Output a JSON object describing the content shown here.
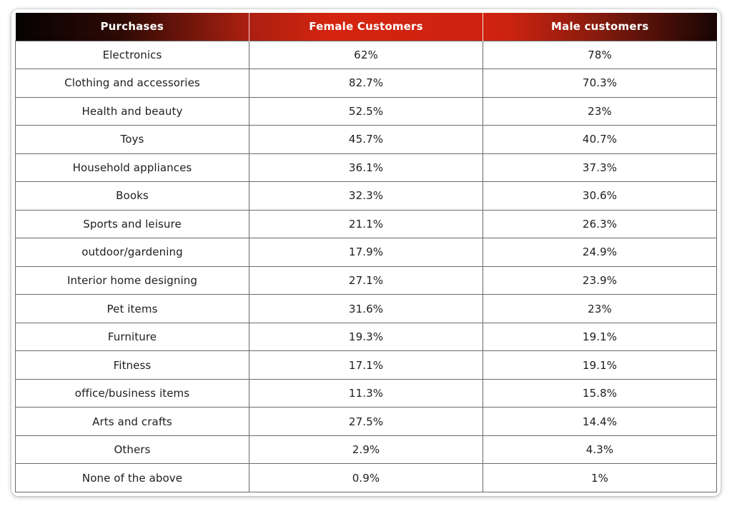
{
  "table": {
    "columns": [
      "Purchases",
      "Female Customers",
      "Male customers"
    ],
    "rows": [
      {
        "purchase": "Electronics",
        "female": "62%",
        "male": "78%"
      },
      {
        "purchase": "Clothing and accessories",
        "female": "82.7%",
        "male": "70.3%"
      },
      {
        "purchase": "Health and beauty",
        "female": "52.5%",
        "male": "23%"
      },
      {
        "purchase": "Toys",
        "female": "45.7%",
        "male": "40.7%"
      },
      {
        "purchase": "Household appliances",
        "female": "36.1%",
        "male": "37.3%"
      },
      {
        "purchase": "Books",
        "female": "32.3%",
        "male": "30.6%"
      },
      {
        "purchase": "Sports and leisure",
        "female": "21.1%",
        "male": "26.3%"
      },
      {
        "purchase": "outdoor/gardening",
        "female": "17.9%",
        "male": "24.9%"
      },
      {
        "purchase": "Interior home designing",
        "female": "27.1%",
        "male": "23.9%"
      },
      {
        "purchase": "Pet items",
        "female": "31.6%",
        "male": "23%"
      },
      {
        "purchase": "Furniture",
        "female": "19.3%",
        "male": "19.1%"
      },
      {
        "purchase": "Fitness",
        "female": "17.1%",
        "male": "19.1%"
      },
      {
        "purchase": "office/business items",
        "female": "11.3%",
        "male": "15.8%"
      },
      {
        "purchase": "Arts and crafts",
        "female": "27.5%",
        "male": "14.4%"
      },
      {
        "purchase": "Others",
        "female": "2.9%",
        "male": "4.3%"
      },
      {
        "purchase": "None of the above",
        "female": "0.9%",
        "male": "1%"
      }
    ]
  },
  "colors": {
    "header_gradient_start": "#060202",
    "header_gradient_mid": "#d4240f",
    "header_gradient_end": "#170503",
    "header_text": "#ffffff",
    "body_text": "#1d1d1d",
    "grid_line": "#6a6a6a",
    "card_background": "#ffffff"
  },
  "chart_data": {
    "type": "table",
    "title": "",
    "columns": [
      "Purchases",
      "Female Customers",
      "Male customers"
    ],
    "categories": [
      "Electronics",
      "Clothing and accessories",
      "Health and beauty",
      "Toys",
      "Household appliances",
      "Books",
      "Sports and leisure",
      "outdoor/gardening",
      "Interior home designing",
      "Pet items",
      "Furniture",
      "Fitness",
      "office/business items",
      "Arts and crafts",
      "Others",
      "None of the above"
    ],
    "series": [
      {
        "name": "Female Customers",
        "values": [
          62,
          82.7,
          52.5,
          45.7,
          36.1,
          32.3,
          21.1,
          17.9,
          27.1,
          31.6,
          19.3,
          17.1,
          11.3,
          27.5,
          2.9,
          0.9
        ]
      },
      {
        "name": "Male customers",
        "values": [
          78,
          70.3,
          23,
          40.7,
          37.3,
          30.6,
          26.3,
          24.9,
          23.9,
          23,
          19.1,
          19.1,
          15.8,
          14.4,
          4.3,
          1
        ]
      }
    ],
    "unit": "%"
  }
}
